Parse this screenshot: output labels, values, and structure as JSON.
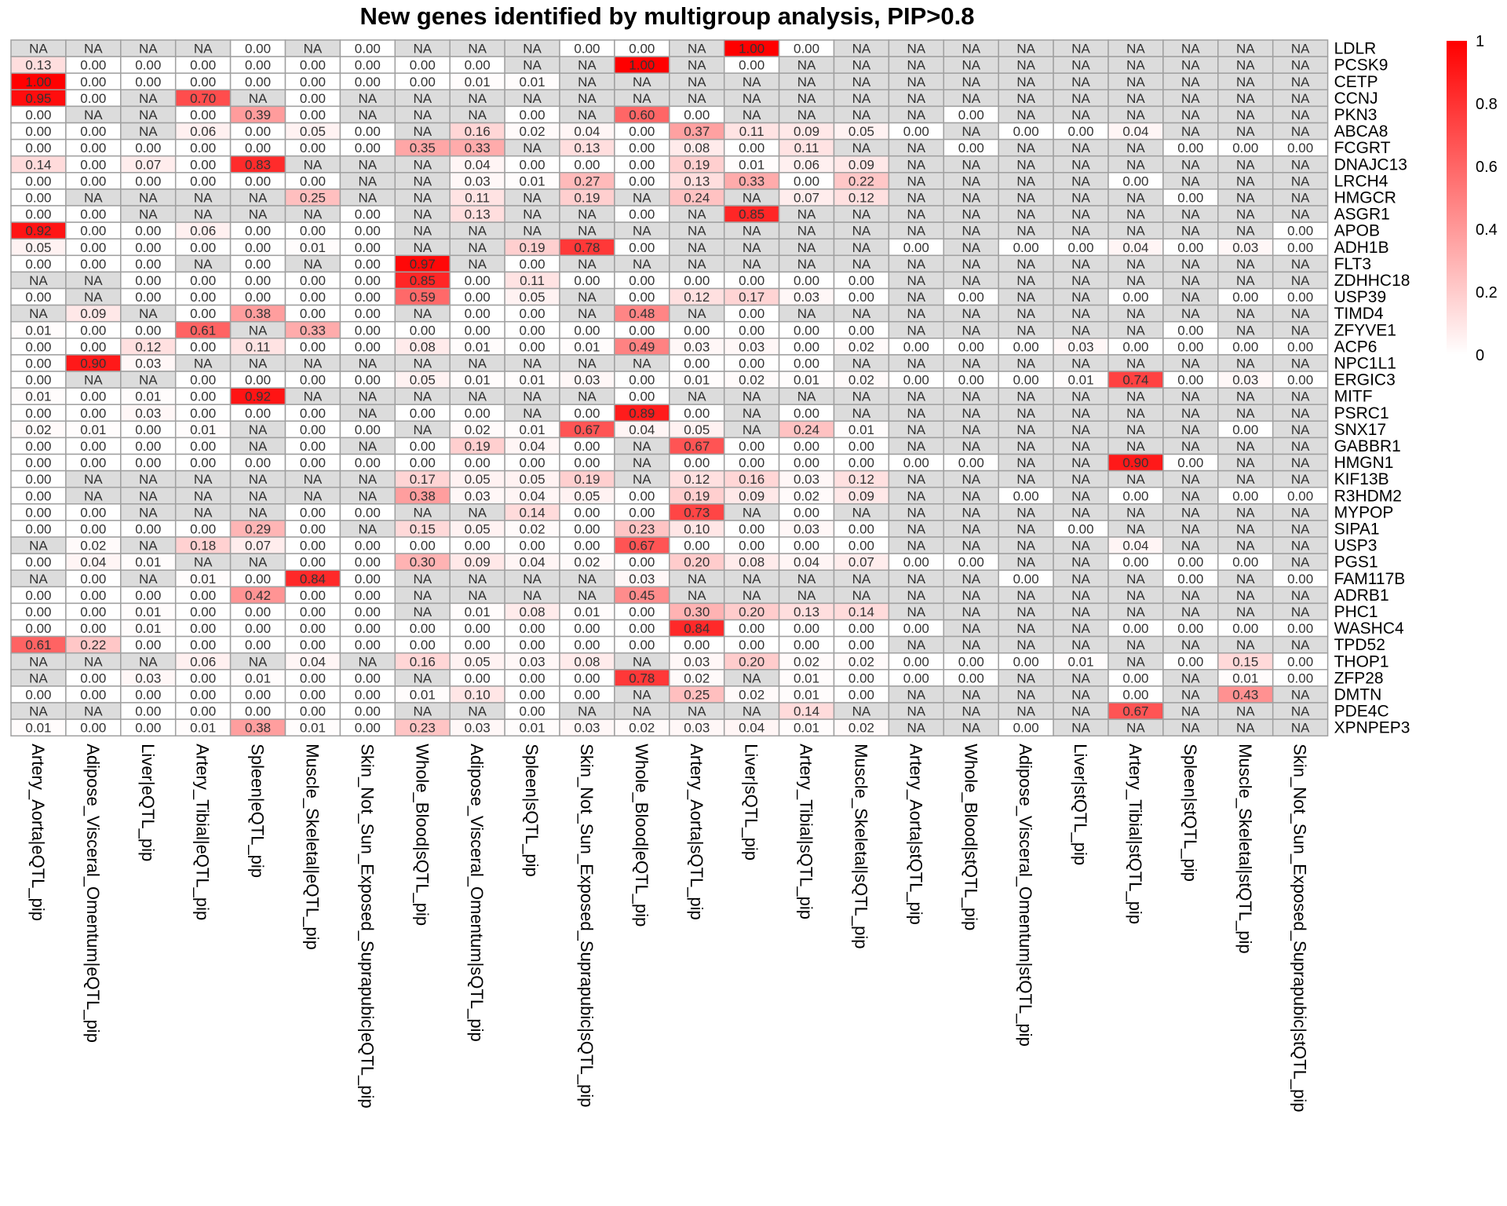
{
  "chart_data": {
    "type": "heatmap",
    "title": "New genes identified by multigroup analysis, PIP>0.8",
    "columns": [
      "Artery_Aorta|eQTL_pip",
      "Adipose_Visceral_Omentum|eQTL_pip",
      "Liver|eQTL_pip",
      "Artery_Tibial|eQTL_pip",
      "Spleen|eQTL_pip",
      "Muscle_Skeletal|eQTL_pip",
      "Skin_Not_Sun_Exposed_Suprapubic|eQTL_pip",
      "Whole_Blood|sQTL_pip",
      "Adipose_Visceral_Omentum|sQTL_pip",
      "Spleen|sQTL_pip",
      "Skin_Not_Sun_Exposed_Suprapubic|sQTL_pip",
      "Whole_Blood|eQTL_pip",
      "Artery_Aorta|sQTL_pip",
      "Liver|sQTL_pip",
      "Artery_Tibial|sQTL_pip",
      "Muscle_Skeletal|sQTL_pip",
      "Artery_Aorta|stQTL_pip",
      "Whole_Blood|stQTL_pip",
      "Adipose_Visceral_Omentum|stQTL_pip",
      "Liver|stQTL_pip",
      "Artery_Tibial|stQTL_pip",
      "Spleen|stQTL_pip",
      "Muscle_Skeletal|stQTL_pip",
      "Skin_Not_Sun_Exposed_Suprapubic|stQTL_pip"
    ],
    "rows": [
      "LDLR",
      "PCSK9",
      "CETP",
      "CCNJ",
      "PKN3",
      "ABCA8",
      "FCGRT",
      "DNAJC13",
      "LRCH4",
      "HMGCR",
      "ASGR1",
      "APOB",
      "ADH1B",
      "FLT3",
      "ZDHHC18",
      "USP39",
      "TIMD4",
      "ZFYVE1",
      "ACP6",
      "NPC1L1",
      "ERGIC3",
      "MITF",
      "PSRC1",
      "SNX17",
      "GABBR1",
      "HMGN1",
      "KIF13B",
      "R3HDM2",
      "MYPOP",
      "SIPA1",
      "USP3",
      "PGS1",
      "FAM117B",
      "ADRB1",
      "PHC1",
      "WASHC4",
      "TPD52",
      "THOP1",
      "ZFP28",
      "DMTN",
      "PDE4C",
      "XPNPEP3"
    ],
    "values": [
      [
        "NA",
        "NA",
        "NA",
        "NA",
        "0.00",
        "NA",
        "0.00",
        "NA",
        "NA",
        "NA",
        "0.00",
        "0.00",
        "NA",
        "1.00",
        "0.00",
        "NA",
        "NA",
        "NA",
        "NA",
        "NA",
        "NA",
        "NA",
        "NA",
        "NA"
      ],
      [
        "0.13",
        "0.00",
        "0.00",
        "0.00",
        "0.00",
        "0.00",
        "0.00",
        "0.00",
        "0.00",
        "NA",
        "NA",
        "1.00",
        "NA",
        "0.00",
        "NA",
        "NA",
        "NA",
        "NA",
        "NA",
        "NA",
        "NA",
        "NA",
        "NA",
        "NA"
      ],
      [
        "1.00",
        "0.00",
        "0.00",
        "0.00",
        "0.00",
        "0.00",
        "0.00",
        "0.00",
        "0.01",
        "0.01",
        "NA",
        "NA",
        "NA",
        "NA",
        "NA",
        "NA",
        "NA",
        "NA",
        "NA",
        "NA",
        "NA",
        "NA",
        "NA",
        "NA"
      ],
      [
        "0.95",
        "0.00",
        "NA",
        "0.70",
        "NA",
        "0.00",
        "NA",
        "NA",
        "NA",
        "NA",
        "NA",
        "NA",
        "NA",
        "NA",
        "NA",
        "NA",
        "NA",
        "NA",
        "NA",
        "NA",
        "NA",
        "NA",
        "NA",
        "NA"
      ],
      [
        "0.00",
        "NA",
        "NA",
        "0.00",
        "0.39",
        "0.00",
        "NA",
        "NA",
        "NA",
        "0.00",
        "NA",
        "0.60",
        "0.00",
        "NA",
        "NA",
        "NA",
        "NA",
        "0.00",
        "NA",
        "NA",
        "NA",
        "NA",
        "NA",
        "NA"
      ],
      [
        "0.00",
        "0.00",
        "NA",
        "0.06",
        "0.00",
        "0.05",
        "0.00",
        "NA",
        "0.16",
        "0.02",
        "0.04",
        "0.00",
        "0.37",
        "0.11",
        "0.09",
        "0.05",
        "0.00",
        "NA",
        "0.00",
        "0.00",
        "0.04",
        "NA",
        "NA",
        "NA"
      ],
      [
        "0.00",
        "0.00",
        "0.00",
        "0.00",
        "0.00",
        "0.00",
        "0.00",
        "0.35",
        "0.33",
        "NA",
        "0.13",
        "0.00",
        "0.08",
        "0.00",
        "0.11",
        "NA",
        "NA",
        "0.00",
        "NA",
        "NA",
        "NA",
        "0.00",
        "0.00",
        "0.00"
      ],
      [
        "0.14",
        "0.00",
        "0.07",
        "0.00",
        "0.83",
        "NA",
        "NA",
        "NA",
        "0.04",
        "0.00",
        "0.00",
        "0.00",
        "0.19",
        "0.01",
        "0.06",
        "0.09",
        "NA",
        "NA",
        "NA",
        "NA",
        "NA",
        "NA",
        "NA",
        "NA"
      ],
      [
        "0.00",
        "0.00",
        "0.00",
        "0.00",
        "0.00",
        "0.00",
        "NA",
        "NA",
        "0.03",
        "0.01",
        "0.27",
        "0.00",
        "0.13",
        "0.33",
        "0.00",
        "0.22",
        "NA",
        "NA",
        "NA",
        "NA",
        "0.00",
        "NA",
        "NA",
        "NA"
      ],
      [
        "0.00",
        "NA",
        "NA",
        "NA",
        "NA",
        "0.25",
        "NA",
        "NA",
        "0.11",
        "NA",
        "0.19",
        "NA",
        "0.24",
        "NA",
        "0.07",
        "0.12",
        "NA",
        "NA",
        "NA",
        "NA",
        "NA",
        "0.00",
        "NA",
        "NA"
      ],
      [
        "0.00",
        "0.00",
        "NA",
        "NA",
        "NA",
        "NA",
        "0.00",
        "NA",
        "0.13",
        "NA",
        "NA",
        "0.00",
        "NA",
        "0.85",
        "NA",
        "NA",
        "NA",
        "NA",
        "NA",
        "NA",
        "NA",
        "NA",
        "NA",
        "NA"
      ],
      [
        "0.92",
        "0.00",
        "0.00",
        "0.06",
        "0.00",
        "0.00",
        "0.00",
        "NA",
        "NA",
        "NA",
        "NA",
        "NA",
        "NA",
        "NA",
        "NA",
        "NA",
        "NA",
        "NA",
        "NA",
        "NA",
        "NA",
        "NA",
        "NA",
        "0.00"
      ],
      [
        "0.05",
        "0.00",
        "0.00",
        "0.00",
        "0.00",
        "0.01",
        "0.00",
        "NA",
        "NA",
        "0.19",
        "0.78",
        "0.00",
        "NA",
        "NA",
        "NA",
        "NA",
        "0.00",
        "NA",
        "0.00",
        "0.00",
        "0.04",
        "0.00",
        "0.03",
        "0.00"
      ],
      [
        "0.00",
        "0.00",
        "0.00",
        "NA",
        "0.00",
        "NA",
        "0.00",
        "0.97",
        "NA",
        "0.00",
        "NA",
        "NA",
        "NA",
        "NA",
        "NA",
        "NA",
        "NA",
        "NA",
        "NA",
        "NA",
        "NA",
        "NA",
        "NA",
        "NA"
      ],
      [
        "NA",
        "NA",
        "0.00",
        "0.00",
        "0.00",
        "0.00",
        "0.00",
        "0.85",
        "0.00",
        "0.11",
        "0.00",
        "0.00",
        "0.00",
        "0.00",
        "0.00",
        "0.00",
        "NA",
        "NA",
        "NA",
        "NA",
        "NA",
        "NA",
        "NA",
        "NA"
      ],
      [
        "0.00",
        "NA",
        "0.00",
        "0.00",
        "0.00",
        "0.00",
        "0.00",
        "0.59",
        "0.00",
        "0.05",
        "NA",
        "0.00",
        "0.12",
        "0.17",
        "0.03",
        "0.00",
        "NA",
        "0.00",
        "NA",
        "NA",
        "0.00",
        "NA",
        "0.00",
        "0.00"
      ],
      [
        "NA",
        "0.09",
        "NA",
        "0.00",
        "0.38",
        "0.00",
        "0.00",
        "NA",
        "0.00",
        "0.00",
        "NA",
        "0.48",
        "NA",
        "0.00",
        "NA",
        "NA",
        "NA",
        "NA",
        "NA",
        "NA",
        "NA",
        "NA",
        "NA",
        "NA"
      ],
      [
        "0.01",
        "0.00",
        "0.00",
        "0.61",
        "NA",
        "0.33",
        "0.00",
        "0.00",
        "0.00",
        "0.00",
        "0.00",
        "0.00",
        "0.00",
        "0.00",
        "0.00",
        "0.00",
        "NA",
        "NA",
        "NA",
        "NA",
        "NA",
        "0.00",
        "NA",
        "NA"
      ],
      [
        "0.00",
        "0.00",
        "0.12",
        "0.00",
        "0.11",
        "0.00",
        "0.00",
        "0.08",
        "0.01",
        "0.00",
        "0.01",
        "0.49",
        "0.03",
        "0.03",
        "0.00",
        "0.02",
        "0.00",
        "0.00",
        "0.00",
        "0.03",
        "0.00",
        "0.00",
        "0.00",
        "0.00"
      ],
      [
        "0.00",
        "0.90",
        "0.03",
        "NA",
        "NA",
        "NA",
        "NA",
        "NA",
        "NA",
        "NA",
        "NA",
        "NA",
        "0.00",
        "0.00",
        "0.00",
        "NA",
        "NA",
        "NA",
        "NA",
        "NA",
        "NA",
        "NA",
        "NA",
        "NA"
      ],
      [
        "0.00",
        "NA",
        "NA",
        "0.00",
        "0.00",
        "0.00",
        "0.00",
        "0.05",
        "0.01",
        "0.01",
        "0.03",
        "0.00",
        "0.01",
        "0.02",
        "0.01",
        "0.02",
        "0.00",
        "0.00",
        "0.00",
        "0.01",
        "0.74",
        "0.00",
        "0.03",
        "0.00"
      ],
      [
        "0.01",
        "0.00",
        "0.01",
        "0.00",
        "0.92",
        "NA",
        "NA",
        "NA",
        "NA",
        "NA",
        "NA",
        "0.00",
        "NA",
        "NA",
        "NA",
        "NA",
        "NA",
        "NA",
        "NA",
        "NA",
        "NA",
        "NA",
        "NA",
        "NA"
      ],
      [
        "0.00",
        "0.00",
        "0.03",
        "0.00",
        "0.00",
        "0.00",
        "NA",
        "0.00",
        "0.00",
        "NA",
        "0.00",
        "0.89",
        "0.00",
        "NA",
        "0.00",
        "NA",
        "NA",
        "NA",
        "NA",
        "NA",
        "NA",
        "NA",
        "NA",
        "NA"
      ],
      [
        "0.02",
        "0.01",
        "0.00",
        "0.01",
        "NA",
        "0.00",
        "0.00",
        "NA",
        "0.02",
        "0.01",
        "0.67",
        "0.04",
        "0.05",
        "NA",
        "0.24",
        "0.01",
        "NA",
        "NA",
        "NA",
        "NA",
        "NA",
        "NA",
        "0.00",
        "NA"
      ],
      [
        "0.00",
        "0.00",
        "0.00",
        "0.00",
        "NA",
        "0.00",
        "NA",
        "0.00",
        "0.19",
        "0.04",
        "0.00",
        "NA",
        "0.67",
        "0.00",
        "0.00",
        "0.00",
        "NA",
        "NA",
        "NA",
        "NA",
        "NA",
        "NA",
        "NA",
        "NA"
      ],
      [
        "0.00",
        "0.00",
        "0.00",
        "0.00",
        "0.00",
        "0.00",
        "0.00",
        "0.00",
        "0.00",
        "0.00",
        "0.00",
        "NA",
        "0.00",
        "0.00",
        "0.00",
        "0.00",
        "0.00",
        "0.00",
        "NA",
        "NA",
        "0.90",
        "0.00",
        "NA",
        "NA"
      ],
      [
        "0.00",
        "NA",
        "NA",
        "NA",
        "NA",
        "NA",
        "NA",
        "0.17",
        "0.05",
        "0.05",
        "0.19",
        "NA",
        "0.12",
        "0.16",
        "0.03",
        "0.12",
        "NA",
        "NA",
        "NA",
        "NA",
        "NA",
        "NA",
        "NA",
        "NA"
      ],
      [
        "0.00",
        "NA",
        "NA",
        "NA",
        "NA",
        "NA",
        "NA",
        "0.38",
        "0.03",
        "0.04",
        "0.05",
        "0.00",
        "0.19",
        "0.09",
        "0.02",
        "0.09",
        "NA",
        "NA",
        "0.00",
        "NA",
        "0.00",
        "NA",
        "0.00",
        "0.00"
      ],
      [
        "0.00",
        "0.00",
        "NA",
        "NA",
        "NA",
        "0.00",
        "0.00",
        "NA",
        "NA",
        "0.14",
        "0.00",
        "0.00",
        "0.73",
        "NA",
        "0.00",
        "NA",
        "NA",
        "NA",
        "NA",
        "NA",
        "NA",
        "NA",
        "NA",
        "NA"
      ],
      [
        "0.00",
        "0.00",
        "0.00",
        "0.00",
        "0.29",
        "0.00",
        "NA",
        "0.15",
        "0.05",
        "0.02",
        "0.00",
        "0.23",
        "0.10",
        "0.00",
        "0.03",
        "0.00",
        "NA",
        "NA",
        "NA",
        "0.00",
        "NA",
        "NA",
        "NA",
        "NA"
      ],
      [
        "NA",
        "0.02",
        "NA",
        "0.18",
        "0.07",
        "0.00",
        "0.00",
        "0.00",
        "0.00",
        "0.00",
        "0.00",
        "0.67",
        "0.00",
        "0.00",
        "0.00",
        "0.00",
        "NA",
        "NA",
        "NA",
        "NA",
        "0.04",
        "NA",
        "NA",
        "NA"
      ],
      [
        "0.00",
        "0.04",
        "0.01",
        "NA",
        "NA",
        "0.00",
        "0.00",
        "0.30",
        "0.09",
        "0.04",
        "0.02",
        "0.00",
        "0.20",
        "0.08",
        "0.04",
        "0.07",
        "0.00",
        "0.00",
        "NA",
        "NA",
        "0.00",
        "0.00",
        "0.00",
        "NA"
      ],
      [
        "NA",
        "0.00",
        "NA",
        "0.01",
        "0.00",
        "0.84",
        "0.00",
        "NA",
        "NA",
        "NA",
        "NA",
        "0.03",
        "NA",
        "NA",
        "NA",
        "NA",
        "NA",
        "NA",
        "0.00",
        "NA",
        "NA",
        "0.00",
        "NA",
        "0.00"
      ],
      [
        "0.00",
        "0.00",
        "0.00",
        "0.00",
        "0.42",
        "0.00",
        "0.00",
        "NA",
        "NA",
        "NA",
        "NA",
        "0.45",
        "NA",
        "NA",
        "NA",
        "NA",
        "NA",
        "NA",
        "NA",
        "NA",
        "NA",
        "NA",
        "NA",
        "NA"
      ],
      [
        "0.00",
        "0.00",
        "0.01",
        "0.00",
        "0.00",
        "0.00",
        "0.00",
        "NA",
        "0.01",
        "0.08",
        "0.01",
        "0.00",
        "0.30",
        "0.20",
        "0.13",
        "0.14",
        "NA",
        "NA",
        "NA",
        "NA",
        "NA",
        "NA",
        "NA",
        "NA"
      ],
      [
        "0.00",
        "0.00",
        "0.01",
        "0.00",
        "0.00",
        "0.00",
        "0.00",
        "0.00",
        "0.00",
        "0.00",
        "0.00",
        "0.00",
        "0.84",
        "0.00",
        "0.00",
        "0.00",
        "0.00",
        "NA",
        "NA",
        "NA",
        "0.00",
        "0.00",
        "0.00",
        "0.00"
      ],
      [
        "0.61",
        "0.22",
        "0.00",
        "0.00",
        "0.00",
        "0.00",
        "0.00",
        "0.00",
        "0.00",
        "0.00",
        "0.00",
        "0.00",
        "0.00",
        "0.00",
        "0.00",
        "0.00",
        "NA",
        "NA",
        "NA",
        "NA",
        "NA",
        "NA",
        "NA",
        "NA"
      ],
      [
        "NA",
        "NA",
        "NA",
        "0.06",
        "NA",
        "0.04",
        "NA",
        "0.16",
        "0.05",
        "0.03",
        "0.08",
        "NA",
        "0.03",
        "0.20",
        "0.02",
        "0.02",
        "0.00",
        "0.00",
        "0.00",
        "0.01",
        "NA",
        "0.00",
        "0.15",
        "0.00"
      ],
      [
        "NA",
        "0.00",
        "0.03",
        "0.00",
        "0.01",
        "0.00",
        "0.00",
        "NA",
        "0.00",
        "0.00",
        "0.00",
        "0.78",
        "0.02",
        "NA",
        "0.01",
        "0.00",
        "0.00",
        "0.00",
        "NA",
        "NA",
        "0.00",
        "NA",
        "0.01",
        "0.00"
      ],
      [
        "0.00",
        "0.00",
        "0.00",
        "0.00",
        "0.00",
        "0.00",
        "0.00",
        "0.01",
        "0.10",
        "0.00",
        "0.00",
        "NA",
        "0.25",
        "0.02",
        "0.01",
        "0.00",
        "NA",
        "NA",
        "NA",
        "NA",
        "0.00",
        "NA",
        "0.43",
        "NA"
      ],
      [
        "NA",
        "NA",
        "0.00",
        "0.00",
        "0.00",
        "0.00",
        "0.00",
        "NA",
        "NA",
        "0.00",
        "NA",
        "NA",
        "NA",
        "NA",
        "0.14",
        "NA",
        "NA",
        "NA",
        "NA",
        "NA",
        "0.67",
        "NA",
        "NA",
        "NA"
      ],
      [
        "0.01",
        "0.00",
        "0.00",
        "0.01",
        "0.38",
        "0.01",
        "0.00",
        "0.23",
        "0.03",
        "0.01",
        "0.03",
        "0.02",
        "0.03",
        "0.04",
        "0.01",
        "0.02",
        "NA",
        "NA",
        "0.00",
        "NA",
        "NA",
        "NA",
        "NA",
        "NA"
      ]
    ],
    "color_scale": {
      "low": "#ffffff",
      "high": "#ff0000",
      "na": "#dcdcdc",
      "range": [
        0,
        1
      ]
    },
    "legend": {
      "ticks": [
        "1",
        "0.8",
        "0.6",
        "0.4",
        "0.2",
        "0"
      ],
      "placement": "top-right"
    }
  }
}
